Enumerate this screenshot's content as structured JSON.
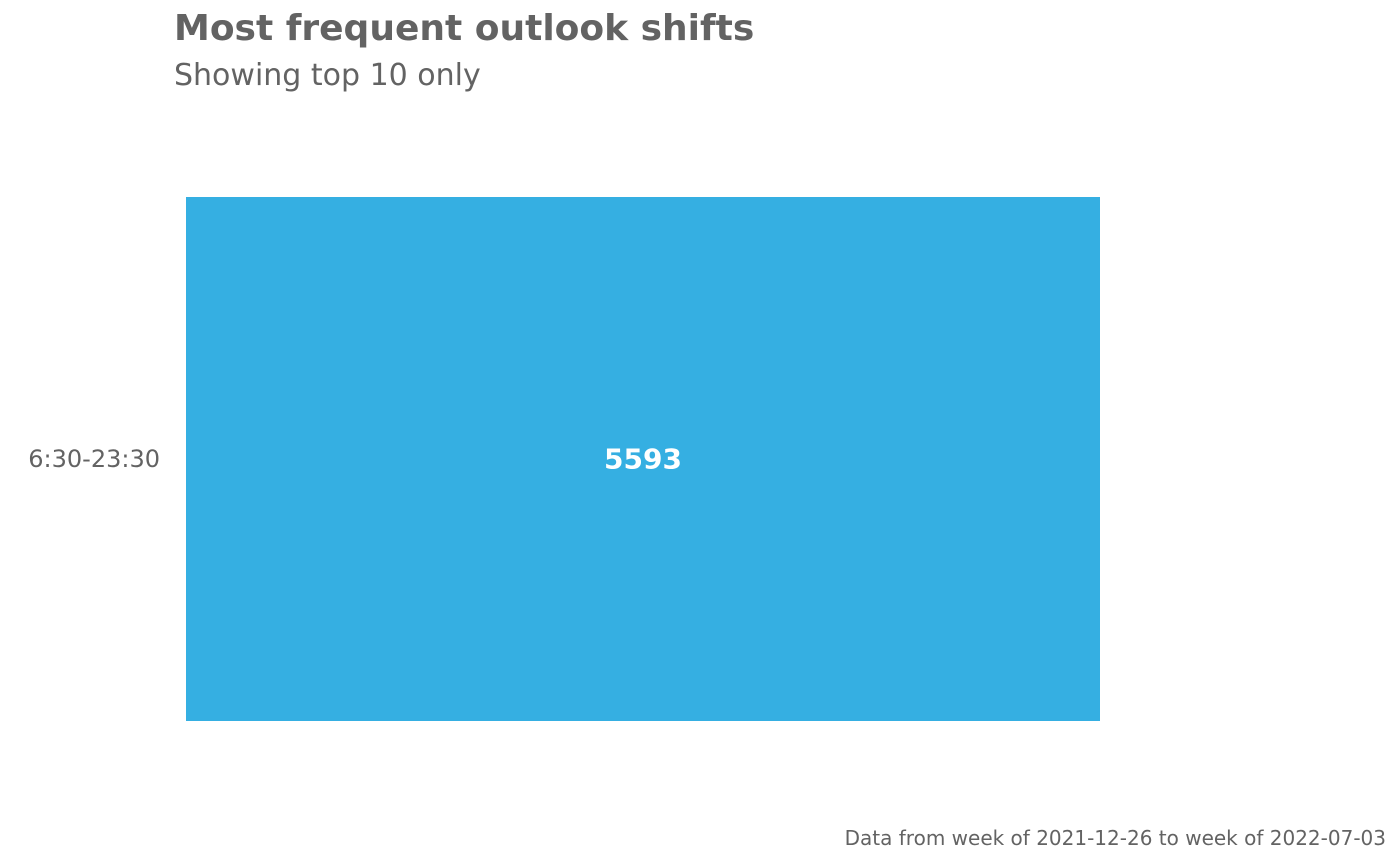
{
  "chart_data": {
    "type": "bar",
    "orientation": "horizontal",
    "title": "Most frequent outlook shifts",
    "subtitle": "Showing top 10 only",
    "caption": "Data from week of 2021-12-26 to week of 2022-07-03",
    "categories": [
      "6:30-23:30"
    ],
    "values": [
      5593
    ],
    "data_labels": [
      "5593"
    ],
    "xlim": [
      0,
      5593
    ],
    "grid": false,
    "legend": "none",
    "bar_color": "#35AFE2",
    "label_color": "#FFFFFF",
    "text_color": "#636363"
  }
}
